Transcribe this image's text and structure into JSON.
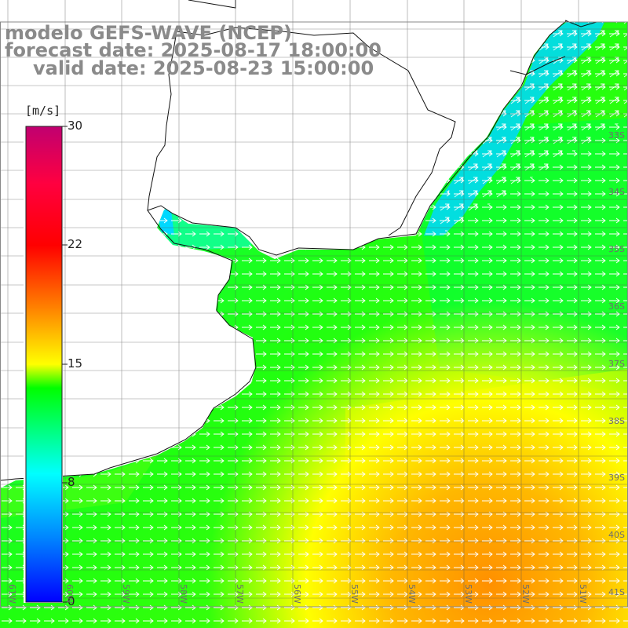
{
  "title": {
    "line1": "modelo GEFS-WAVE (NCEP)",
    "line2": "forecast date: 2025-08-17 18:00:00",
    "line3": "valid date: 2025-08-23 15:00:00"
  },
  "colorbar": {
    "unit": "[m/s]",
    "ticks": [
      "30",
      "22",
      "15",
      "8",
      "0"
    ],
    "range": [
      0,
      30
    ],
    "colors": [
      "#0000ff",
      "#00bfff",
      "#00ffff",
      "#00ff40",
      "#40ff00",
      "#ffff00",
      "#ff8000",
      "#ff0000",
      "#c00060"
    ]
  },
  "lat_labels": [
    "33S",
    "34S",
    "35S",
    "36S",
    "37S",
    "38S",
    "39S",
    "40S",
    "41S"
  ],
  "lon_labels": [
    "61W",
    "60W",
    "59W",
    "58W",
    "57W",
    "56W",
    "55W",
    "54W",
    "53W",
    "52W",
    "51W"
  ],
  "wind_field": {
    "direction": "west-to-east, turning north-east near the Uruguay coast",
    "arrow_color": "#ffffff",
    "field_colors": {
      "land": "#ffffff",
      "coastal_low": "#00d8ff",
      "moderate": "#00ff60",
      "fresh": "#80ff00",
      "strong": "#ffff00",
      "very_strong": "#ffb000",
      "max": "#ff9000"
    }
  }
}
